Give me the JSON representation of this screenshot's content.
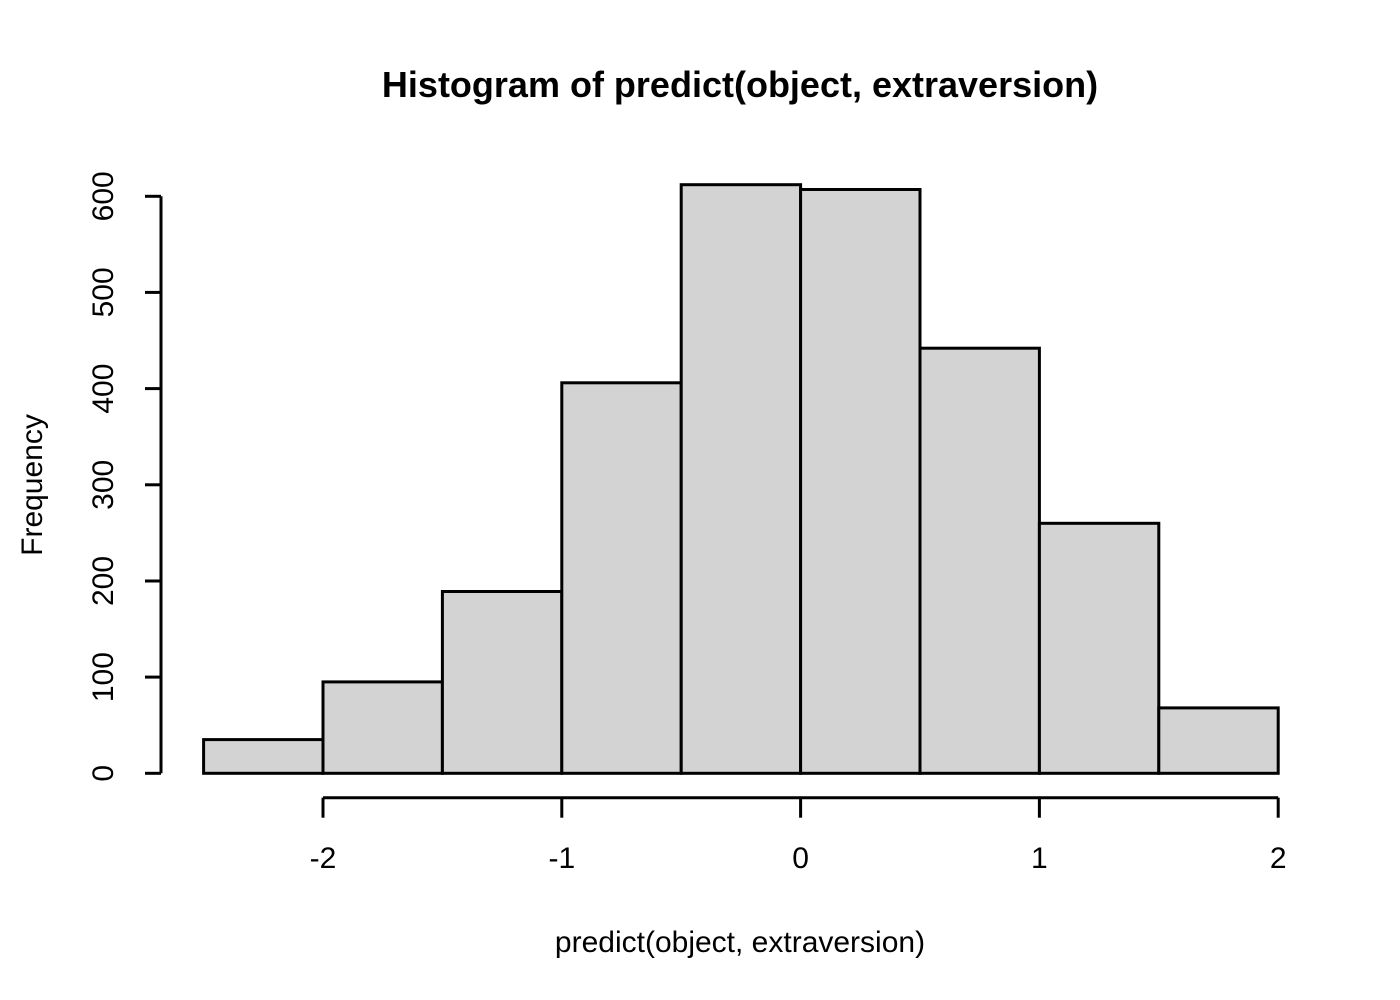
{
  "chart_data": {
    "type": "bar",
    "subtype": "histogram",
    "title": "Histogram of predict(object, extraversion)",
    "xlabel": "predict(object, extraversion)",
    "ylabel": "Frequency",
    "bin_edges": [
      -2.5,
      -2.0,
      -1.5,
      -1.0,
      -0.5,
      0.0,
      0.5,
      1.0,
      1.5,
      2.0
    ],
    "frequencies": [
      35,
      95,
      189,
      406,
      612,
      607,
      442,
      260,
      68
    ],
    "x_ticks": [
      -2,
      -1,
      0,
      1,
      2
    ],
    "x_tick_labels": [
      "-2",
      "-1",
      "0",
      "1",
      "2"
    ],
    "y_ticks": [
      0,
      100,
      200,
      300,
      400,
      500,
      600
    ],
    "y_tick_labels": [
      "0",
      "100",
      "200",
      "300",
      "400",
      "500",
      "600"
    ],
    "xlim": [
      -2.5,
      2.0
    ],
    "ylim": [
      0,
      600
    ],
    "grid": false,
    "legend_position": "none",
    "bar_fill_color": "#d3d3d3",
    "bar_stroke_color": "#000000",
    "axis_color": "#000000",
    "background_color": "#ffffff"
  }
}
